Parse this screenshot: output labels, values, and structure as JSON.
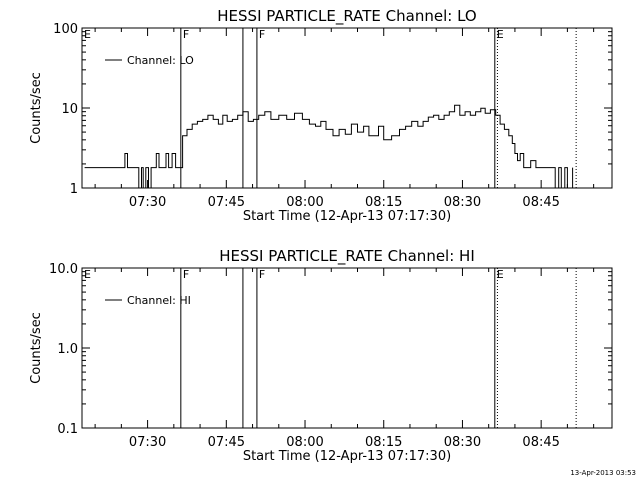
{
  "chart_data": [
    {
      "type": "line",
      "title": "HESSI PARTICLE_RATE Channel: LO",
      "xlabel": "Start Time (12-Apr-13 07:17:30)",
      "ylabel": "Counts/sec",
      "yscale": "log",
      "ylim": [
        1,
        100
      ],
      "xlim": [
        "07:17:30",
        "08:58:30"
      ],
      "xtick_labels": [
        "07:30",
        "07:45",
        "08:00",
        "08:15",
        "08:30",
        "08:45"
      ],
      "ytick_labels": [
        "1",
        "10",
        "100"
      ],
      "grid": false,
      "legend": {
        "placement": "top-left",
        "entries": [
          "Channel: LO"
        ]
      },
      "markers": [
        {
          "label": "E",
          "time": "07:17:30",
          "style": "solid"
        },
        {
          "label": "F",
          "time": "07:36:20",
          "style": "solid"
        },
        {
          "label": "",
          "time": "07:48:10",
          "style": "solid"
        },
        {
          "label": "F",
          "time": "07:50:50",
          "style": "solid"
        },
        {
          "label": "E",
          "time": "08:36:10",
          "style": "solid"
        },
        {
          "label": "",
          "time": "08:36:40",
          "style": "dotted"
        },
        {
          "label": "",
          "time": "08:51:40",
          "style": "dotted"
        }
      ],
      "series": [
        {
          "name": "Channel: LO",
          "x": [
            "07:18:00",
            "07:25:20",
            "07:25:40",
            "07:26:10",
            "07:26:40",
            "07:27:40",
            "07:28:20",
            "07:28:50",
            "07:29:10",
            "07:29:40",
            "07:30:10",
            "07:30:40",
            "07:31:10",
            "07:31:40",
            "07:32:10",
            "07:32:50",
            "07:33:30",
            "07:34:00",
            "07:34:40",
            "07:35:20",
            "07:36:20",
            "07:36:40",
            "07:37:30",
            "07:38:30",
            "07:39:30",
            "07:40:30",
            "07:41:30",
            "07:42:30",
            "07:43:30",
            "07:44:20",
            "07:45:10",
            "07:46:10",
            "07:47:10",
            "07:48:10",
            "07:49:10",
            "07:50:10",
            "07:51:10",
            "07:52:20",
            "07:53:30",
            "07:55:00",
            "07:56:30",
            "07:58:00",
            "07:59:30",
            "08:00:50",
            "08:02:00",
            "08:03:00",
            "08:04:00",
            "08:05:20",
            "08:06:30",
            "08:07:40",
            "08:08:50",
            "08:10:00",
            "08:11:10",
            "08:12:10",
            "08:13:10",
            "08:14:00",
            "08:15:00",
            "08:16:30",
            "08:18:00",
            "08:19:10",
            "08:20:20",
            "08:21:30",
            "08:22:30",
            "08:23:30",
            "08:24:30",
            "08:25:30",
            "08:26:30",
            "08:27:30",
            "08:28:30",
            "08:29:30",
            "08:30:30",
            "08:31:30",
            "08:32:30",
            "08:33:30",
            "08:34:20",
            "08:35:20",
            "08:36:20",
            "08:37:10",
            "08:38:00",
            "08:38:50",
            "08:39:30",
            "08:40:00",
            "08:40:30",
            "08:41:00",
            "08:41:40",
            "08:42:20",
            "08:43:00",
            "08:44:00",
            "08:45:00",
            "08:46:00",
            "08:47:00",
            "08:47:40",
            "08:48:20",
            "08:48:50",
            "08:49:30",
            "08:50:00",
            "08:51:00"
          ],
          "y": [
            1.8,
            1.8,
            2.7,
            1.8,
            1.8,
            1.8,
            0.9,
            1.8,
            0.9,
            1.8,
            0.9,
            1.8,
            1.8,
            2.7,
            1.8,
            1.8,
            2.7,
            1.8,
            2.7,
            1.8,
            1.8,
            4.5,
            5.4,
            6.3,
            6.8,
            7.2,
            8.1,
            7.2,
            6.3,
            8.1,
            6.8,
            7.2,
            8.1,
            9.0,
            6.8,
            7.2,
            8.1,
            9.0,
            7.2,
            8.1,
            7.2,
            8.6,
            7.2,
            6.3,
            5.9,
            6.8,
            5.4,
            4.5,
            5.4,
            4.7,
            6.3,
            5.0,
            5.9,
            4.5,
            4.5,
            5.9,
            4.0,
            4.5,
            5.4,
            5.9,
            6.8,
            5.9,
            6.8,
            7.7,
            8.1,
            7.2,
            8.1,
            9.0,
            10.8,
            8.1,
            9.0,
            8.1,
            9.0,
            9.9,
            8.6,
            9.5,
            8.1,
            6.3,
            5.4,
            4.5,
            3.6,
            2.7,
            2.2,
            2.7,
            1.8,
            1.8,
            2.2,
            1.8,
            1.8,
            1.8,
            1.8,
            0.9,
            1.8,
            0.9,
            1.8,
            0.9,
            1.8
          ]
        }
      ]
    },
    {
      "type": "line",
      "title": "HESSI PARTICLE_RATE Channel: HI",
      "xlabel": "Start Time (12-Apr-13 07:17:30)",
      "ylabel": "Counts/sec",
      "yscale": "log",
      "ylim": [
        0.1,
        10
      ],
      "xlim": [
        "07:17:30",
        "08:58:30"
      ],
      "xtick_labels": [
        "07:30",
        "07:45",
        "08:00",
        "08:15",
        "08:30",
        "08:45"
      ],
      "ytick_labels": [
        "0.1",
        "1.0",
        "10.0"
      ],
      "grid": false,
      "legend": {
        "placement": "top-left",
        "entries": [
          "Channel: HI"
        ]
      },
      "markers": [
        {
          "label": "E",
          "time": "07:17:30",
          "style": "solid"
        },
        {
          "label": "F",
          "time": "07:36:20",
          "style": "solid"
        },
        {
          "label": "",
          "time": "07:48:10",
          "style": "solid"
        },
        {
          "label": "F",
          "time": "07:50:50",
          "style": "solid"
        },
        {
          "label": "E",
          "time": "08:36:10",
          "style": "solid"
        },
        {
          "label": "",
          "time": "08:36:40",
          "style": "dotted"
        },
        {
          "label": "",
          "time": "08:51:40",
          "style": "dotted"
        }
      ],
      "series": [
        {
          "name": "Channel: HI",
          "x": [],
          "y": []
        }
      ]
    }
  ],
  "footer": {
    "timestamp": "13-Apr-2013 03:53"
  }
}
